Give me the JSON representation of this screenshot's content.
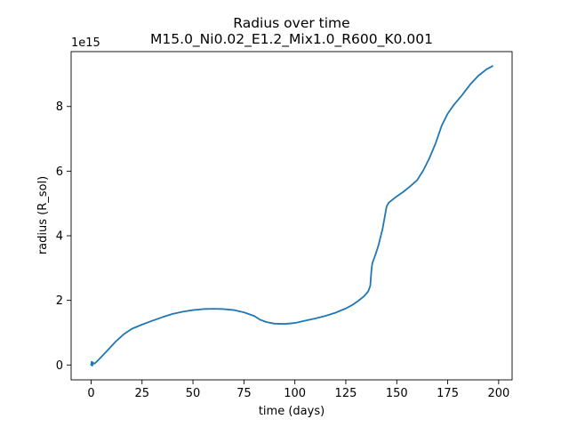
{
  "chart_data": {
    "type": "line",
    "title_line1": "Radius  over time",
    "title_line2": "M15.0_Ni0.02_E1.2_Mix1.0_R600_K0.001",
    "xlabel": "time (days)",
    "ylabel": "radius (R_sol)",
    "y_offset_label": "1e15",
    "xlim": [
      -9.8,
      206.6
    ],
    "ylim": [
      -0.46,
      9.7
    ],
    "x_ticks": [
      0,
      25,
      50,
      75,
      100,
      125,
      150,
      175,
      200
    ],
    "x_tick_labels": [
      "0",
      "25",
      "50",
      "75",
      "100",
      "125",
      "150",
      "175",
      "200"
    ],
    "y_ticks": [
      0,
      2,
      4,
      6,
      8
    ],
    "y_tick_labels": [
      "0",
      "2",
      "4",
      "6",
      "8"
    ],
    "grid": false,
    "line_color": "#1f77b4",
    "series": [
      {
        "x": [
          0,
          0.3,
          0.6,
          0.9,
          1.2,
          1.5,
          2,
          3,
          5,
          8,
          12,
          16,
          20,
          25,
          30,
          35,
          40,
          45,
          50,
          55,
          60,
          65,
          70,
          75,
          80,
          83,
          86,
          90,
          95,
          100,
          105,
          110,
          115,
          120,
          125,
          128,
          131,
          134,
          136,
          137,
          137.3,
          137.6,
          138,
          139,
          140,
          141,
          142,
          143,
          144,
          145,
          146,
          148,
          150,
          153,
          156,
          160,
          163,
          166,
          169,
          172,
          175,
          178,
          182,
          186,
          190,
          194,
          197
        ],
        "y": [
          0.0,
          0.1,
          -0.02,
          0.08,
          0.05,
          0.04,
          0.06,
          0.12,
          0.25,
          0.45,
          0.72,
          0.95,
          1.12,
          1.25,
          1.37,
          1.48,
          1.58,
          1.65,
          1.7,
          1.73,
          1.74,
          1.73,
          1.7,
          1.63,
          1.52,
          1.4,
          1.33,
          1.28,
          1.27,
          1.3,
          1.37,
          1.44,
          1.52,
          1.62,
          1.75,
          1.85,
          1.98,
          2.13,
          2.28,
          2.45,
          2.7,
          2.95,
          3.15,
          3.32,
          3.5,
          3.7,
          3.95,
          4.2,
          4.55,
          4.9,
          5.02,
          5.12,
          5.22,
          5.35,
          5.5,
          5.72,
          6.02,
          6.4,
          6.85,
          7.4,
          7.78,
          8.05,
          8.35,
          8.68,
          8.95,
          9.15,
          9.25
        ]
      }
    ]
  }
}
